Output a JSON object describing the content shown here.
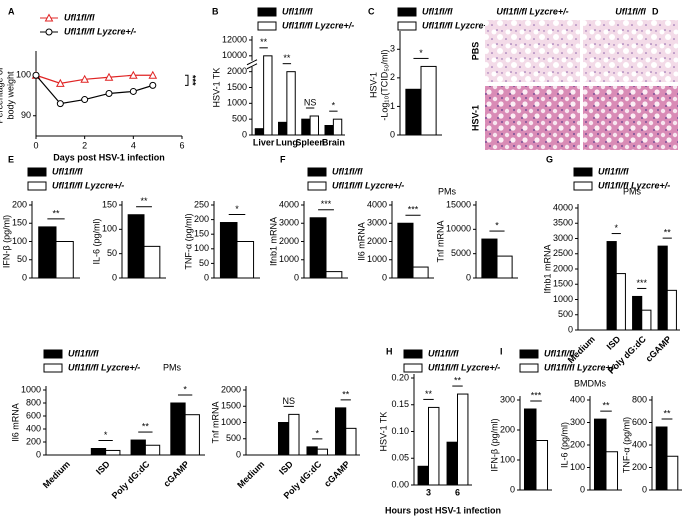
{
  "chart_data": [
    {
      "type": "line",
      "panel": "A",
      "legend": true,
      "ylabel": [
        "Percentage of",
        "body weight"
      ],
      "xlabel": "Days post HSV-1 infection",
      "x": [
        0,
        1,
        2,
        3,
        4,
        4.8
      ],
      "xlim": [
        0,
        6
      ],
      "xticks": [
        0,
        2,
        4,
        6
      ],
      "ylim": [
        85,
        105
      ],
      "yticks": [
        90,
        100
      ],
      "annotation": "***",
      "series": [
        {
          "name": "Ufl1fl/fl",
          "color": "#e02424",
          "marker": "triangle",
          "values": [
            100,
            98,
            99,
            99.5,
            100,
            100
          ]
        },
        {
          "name": "Ufl1fl/fl Lyzcre+/-",
          "color": "#000000",
          "marker": "circle",
          "values": [
            100,
            93,
            94,
            95.5,
            96,
            97.5
          ]
        }
      ]
    },
    {
      "type": "bar",
      "panel": "B",
      "legend": true,
      "broken_axis": true,
      "ylabel": "HSV-1 TK",
      "categories": [
        "Liver",
        "Lung",
        "Spleen",
        "Brain"
      ],
      "ylim": [
        0,
        12000
      ],
      "yticks": [
        0,
        500,
        1000,
        1500,
        2000,
        10000,
        12000
      ],
      "significance": [
        "**",
        "**",
        "NS",
        "*"
      ],
      "series": [
        {
          "name": "Ufl1fl/fl",
          "color": "#000000",
          "values": [
            200,
            400,
            500,
            300
          ]
        },
        {
          "name": "Ufl1fl/fl Lyzcre+/-",
          "color": "#ffffff",
          "values": [
            10000,
            2000,
            600,
            500
          ]
        }
      ]
    },
    {
      "type": "bar",
      "panel": "C",
      "legend": true,
      "ylabel": [
        "HSV-1",
        "-Log₁₀(TCID₅₀/ml)"
      ],
      "categories": [
        null
      ],
      "ylim": [
        0,
        3.5
      ],
      "yticks": [
        0,
        1,
        2,
        3
      ],
      "significance": [
        "*"
      ],
      "series": [
        {
          "name": "Ufl1fl/fl",
          "color": "#000000",
          "values": [
            1.6
          ]
        },
        {
          "name": "Ufl1fl/fl Lyzcre+/-",
          "color": "#ffffff",
          "values": [
            2.4
          ]
        }
      ]
    },
    {
      "type": "bar",
      "panel": "E",
      "legend": true,
      "ylabel": "IFN-β (pg/ml)",
      "categories": [
        null
      ],
      "ylim": [
        0,
        200
      ],
      "yticks": [
        0,
        50,
        100,
        150,
        200
      ],
      "significance": [
        "**"
      ],
      "series": [
        {
          "name": "Ufl1fl/fl",
          "color": "#000000",
          "values": [
            140
          ]
        },
        {
          "name": "Ufl1fl/fl Lyzcre+/-",
          "color": "#ffffff",
          "values": [
            100
          ]
        }
      ]
    },
    {
      "type": "bar",
      "ylabel": "IL-6 (pg/ml)",
      "categories": [
        null
      ],
      "ylim": [
        0,
        150
      ],
      "yticks": [
        0,
        50,
        100,
        150
      ],
      "significance": [
        "**"
      ],
      "series": [
        {
          "color": "#000000",
          "values": [
            130
          ]
        },
        {
          "color": "#ffffff",
          "values": [
            65
          ]
        }
      ]
    },
    {
      "type": "bar",
      "ylabel": "TNF-α (pg/ml)",
      "categories": [
        null
      ],
      "ylim": [
        0,
        250
      ],
      "yticks": [
        0,
        50,
        100,
        150,
        200,
        250
      ],
      "significance": [
        "*"
      ],
      "series": [
        {
          "color": "#000000",
          "values": [
            190
          ]
        },
        {
          "color": "#ffffff",
          "values": [
            125
          ]
        }
      ]
    },
    {
      "type": "bar",
      "panel": "F",
      "legend": true,
      "annotation": "PMs",
      "ylabel": "Ifnb1 mRNA",
      "categories": [
        null
      ],
      "ylim": [
        0,
        4000
      ],
      "yticks": [
        0,
        1000,
        2000,
        3000,
        4000
      ],
      "significance": [
        "***"
      ],
      "series": [
        {
          "name": "Ufl1fl/fl",
          "color": "#000000",
          "values": [
            3300
          ]
        },
        {
          "name": "Ufl1fl/fl Lyzcre+/-",
          "color": "#ffffff",
          "values": [
            350
          ]
        }
      ]
    },
    {
      "type": "bar",
      "ylabel": "Il6 mRNA",
      "categories": [
        null
      ],
      "ylim": [
        0,
        4000
      ],
      "yticks": [
        0,
        1000,
        2000,
        3000,
        4000
      ],
      "significance": [
        "***"
      ],
      "series": [
        {
          "color": "#000000",
          "values": [
            3000
          ]
        },
        {
          "color": "#ffffff",
          "values": [
            600
          ]
        }
      ]
    },
    {
      "type": "bar",
      "ylabel": "Tnf mRNA",
      "categories": [
        null
      ],
      "ylim": [
        0,
        15000
      ],
      "yticks": [
        0,
        5000,
        10000,
        15000
      ],
      "significance": [
        "*"
      ],
      "series": [
        {
          "color": "#000000",
          "values": [
            8000
          ]
        },
        {
          "color": "#ffffff",
          "values": [
            4500
          ]
        }
      ]
    },
    {
      "type": "bar",
      "panel": "G",
      "legend": true,
      "annotation": "PMs",
      "ylabel": "Ifnb1 mRNA",
      "categories": [
        "Medium",
        "ISD",
        "Poly dG:dC",
        "cGAMP"
      ],
      "ylim": [
        0,
        4000
      ],
      "yticks": [
        0,
        500,
        1000,
        1500,
        2000,
        2500,
        3000,
        3500,
        4000
      ],
      "significance": [
        null,
        "*",
        "***",
        "**"
      ],
      "series": [
        {
          "name": "Ufl1fl/fl",
          "color": "#000000",
          "values": [
            0,
            2900,
            1100,
            2750
          ]
        },
        {
          "name": "Ufl1fl/fl Lyzcre+/-",
          "color": "#ffffff",
          "values": [
            0,
            1850,
            650,
            1300
          ]
        }
      ]
    },
    {
      "type": "bar",
      "legend": true,
      "annotation": "PMs",
      "ylabel": "Il6 mRNA",
      "categories": [
        "Medium",
        "ISD",
        "Poly dG:dC",
        "cGAMP"
      ],
      "ylim": [
        0,
        1000
      ],
      "yticks": [
        0,
        200,
        400,
        600,
        800,
        1000
      ],
      "significance": [
        null,
        "*",
        "**",
        "*"
      ],
      "series": [
        {
          "name": "Ufl1fl/fl",
          "color": "#000000",
          "values": [
            0,
            100,
            230,
            800
          ]
        },
        {
          "name": "Ufl1fl/fl Lyzcre+/-",
          "color": "#ffffff",
          "values": [
            0,
            70,
            150,
            620
          ]
        }
      ]
    },
    {
      "type": "bar",
      "ylabel": "Tnf mRNA",
      "categories": [
        "Medium",
        "ISD",
        "Poly dG:dC",
        "cGAMP"
      ],
      "ylim": [
        0,
        2000
      ],
      "yticks": [
        0,
        500,
        1000,
        1500,
        2000
      ],
      "significance": [
        null,
        "NS",
        "*",
        "**"
      ],
      "series": [
        {
          "color": "#000000",
          "values": [
            0,
            1000,
            250,
            1450
          ]
        },
        {
          "color": "#ffffff",
          "values": [
            0,
            1250,
            180,
            820
          ]
        }
      ]
    },
    {
      "type": "bar",
      "panel": "H",
      "legend": true,
      "ylabel": "HSV-1 TK",
      "xlabel": "Hours post HSV-1 infection",
      "categories": [
        "3",
        "6"
      ],
      "ylim": [
        0,
        0.2
      ],
      "yticks": [
        {
          "value": 0,
          "label": "0.00"
        },
        0.05,
        {
          "value": 0.1,
          "label": "0.10"
        },
        0.15,
        {
          "value": 0.2,
          "label": "0.20"
        }
      ],
      "significance": [
        "**",
        "**"
      ],
      "series": [
        {
          "name": "Ufl1fl/fl",
          "color": "#000000",
          "values": [
            0.035,
            0.08
          ]
        },
        {
          "name": "Ufl1fl/fl Lyzcre+/-",
          "color": "#ffffff",
          "values": [
            0.145,
            0.17
          ]
        }
      ]
    },
    {
      "type": "bar",
      "panel": "I",
      "legend": true,
      "annotation": "BMDMs",
      "ylabel": "IFN-β (pg/ml)",
      "categories": [
        null
      ],
      "ylim": [
        0,
        300
      ],
      "yticks": [
        0,
        100,
        200,
        300
      ],
      "significance": [
        "***"
      ],
      "series": [
        {
          "name": "Ufl1fl/fl",
          "color": "#000000",
          "values": [
            270
          ]
        },
        {
          "name": "Ufl1fl/fl Lyzcre+/-",
          "color": "#ffffff",
          "values": [
            165
          ]
        }
      ]
    },
    {
      "type": "bar",
      "ylabel": "IL-6 (pg/ml)",
      "categories": [
        null
      ],
      "ylim": [
        0,
        400
      ],
      "yticks": [
        0,
        100,
        200,
        300,
        400
      ],
      "significance": [
        "**"
      ],
      "series": [
        {
          "color": "#000000",
          "values": [
            315
          ]
        },
        {
          "color": "#ffffff",
          "values": [
            170
          ]
        }
      ]
    },
    {
      "type": "bar",
      "ylabel": "TNF-α (pg/ml)",
      "categories": [
        null
      ],
      "ylim": [
        0,
        800
      ],
      "yticks": [
        0,
        200,
        400,
        600,
        800
      ],
      "significance": [
        "**"
      ],
      "series": [
        {
          "color": "#000000",
          "values": [
            560
          ]
        },
        {
          "color": "#ffffff",
          "values": [
            300
          ]
        }
      ]
    }
  ],
  "image_panel": {
    "panel": "D",
    "column_labels": [
      "Ufl1fl/fl Lyzcre+/-",
      "Ufl1fl/fl"
    ],
    "row_labels": [
      "PBS",
      "HSV-1"
    ]
  }
}
